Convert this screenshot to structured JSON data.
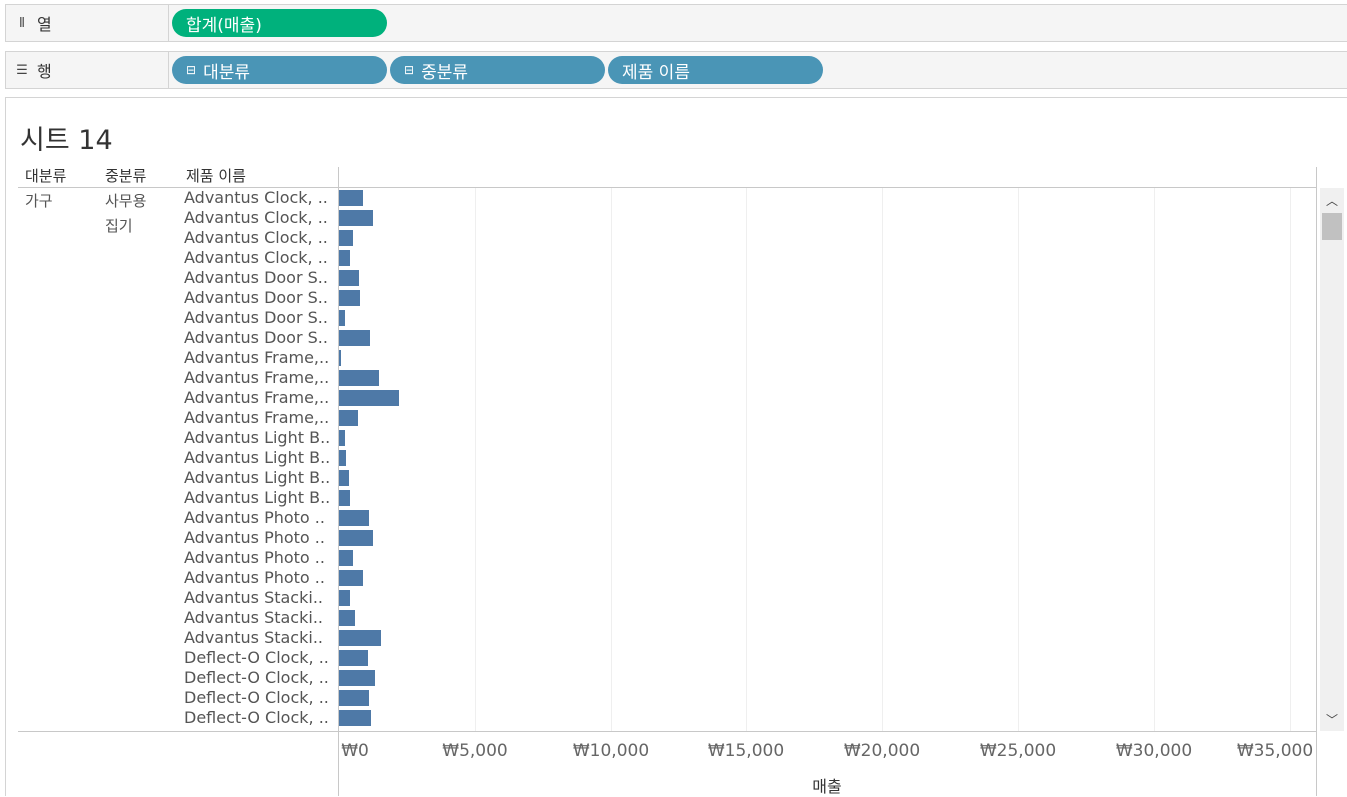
{
  "shelves": {
    "columns": {
      "icon": "columns-icon",
      "label": "열",
      "pills": [
        "합계(매출)"
      ]
    },
    "rows": {
      "icon": "rows-icon",
      "label": "행",
      "pills": [
        "대분류",
        "중분류",
        "제품 이름"
      ]
    }
  },
  "sheet": {
    "title": "시트 14",
    "headers": [
      "대분류",
      "중분류",
      "제품 이름"
    ],
    "category": "가구",
    "subcategory_line1": "사무용",
    "subcategory_line2": "집기",
    "axis_title": "매출",
    "ticks": [
      "₩0",
      "₩5,000",
      "₩10,000",
      "₩15,000",
      "₩20,000",
      "₩25,000",
      "₩30,000",
      "₩35,000"
    ]
  },
  "chart_data": {
    "type": "bar",
    "orientation": "horizontal",
    "xlabel": "매출",
    "xlim": [
      0,
      36000
    ],
    "categories": [
      "Advantus Clock, ..",
      "Advantus Clock, ..",
      "Advantus Clock, ..",
      "Advantus Clock, ..",
      "Advantus Door S..",
      "Advantus Door S..",
      "Advantus Door S..",
      "Advantus Door S..",
      "Advantus Frame,..",
      "Advantus Frame,..",
      "Advantus Frame,..",
      "Advantus Frame,..",
      "Advantus Light B..",
      "Advantus Light B..",
      "Advantus Light B..",
      "Advantus Light B..",
      "Advantus Photo ..",
      "Advantus Photo ..",
      "Advantus Photo ..",
      "Advantus Photo ..",
      "Advantus Stacki..",
      "Advantus Stacki..",
      "Advantus Stacki..",
      "Deflect-O Clock, ..",
      "Deflect-O Clock, ..",
      "Deflect-O Clock, ..",
      "Deflect-O Clock, .."
    ],
    "values": [
      880,
      1250,
      520,
      420,
      740,
      790,
      230,
      1130,
      70,
      1470,
      2200,
      700,
      230,
      260,
      370,
      420,
      1100,
      1250,
      520,
      880,
      420,
      590,
      1530,
      1070,
      1320,
      1100,
      1180
    ]
  },
  "colors": {
    "bar": "#4e79a7",
    "columns_pill": "#00b17c",
    "rows_pill": "#4a95b6"
  }
}
